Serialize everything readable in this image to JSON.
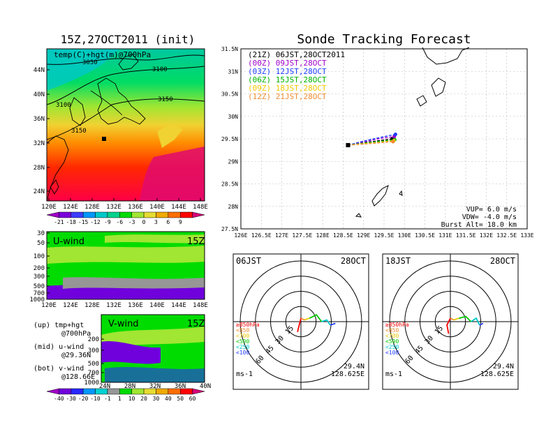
{
  "left_panel": {
    "title": "15Z,27OCT2011 (init)",
    "map_label": "temp(C)+hgt(m)@700hPa",
    "contour_labels": [
      "3050",
      "3100",
      "3100",
      "3150",
      "3150"
    ],
    "lat_ticks": [
      "44N",
      "40N",
      "36N",
      "32N",
      "28N",
      "24N"
    ],
    "lon_ticks": [
      "120E",
      "124E",
      "128E",
      "132E",
      "136E",
      "140E",
      "144E",
      "148E"
    ],
    "temp_colorbar": {
      "labels": [
        "-21",
        "-18",
        "-15",
        "-12",
        "-9",
        "-6",
        "-3",
        "0",
        "3",
        "6",
        "9"
      ],
      "colors": [
        "#a000c8",
        "#7a00dc",
        "#3c3cff",
        "#0096ff",
        "#00c8c8",
        "#00d28c",
        "#00dc00",
        "#a0e632",
        "#e6dc32",
        "#f0aa00",
        "#ff6e00",
        "#ff0000",
        "#d6007a"
      ]
    },
    "u_wind": {
      "label": "U-wind",
      "time": "15Z",
      "p_ticks": [
        "30",
        "50",
        "100",
        "200",
        "300",
        "500",
        "700",
        "1000"
      ],
      "lon_ticks": [
        "120E",
        "124E",
        "128E",
        "132E",
        "136E",
        "140E",
        "144E",
        "148E"
      ]
    },
    "v_wind": {
      "label": "V-wind",
      "time": "15Z",
      "p_ticks": [
        "200",
        "300",
        "500",
        "700",
        "1000"
      ],
      "lat_ticks": [
        "24N",
        "28N",
        "32N",
        "36N",
        "40N"
      ]
    },
    "legend_notes": [
      {
        "head": "(up) tmp+hgt",
        "sub": "@700hPa"
      },
      {
        "head": "(mid) u-wind",
        "sub": "@29.36N"
      },
      {
        "head": "(bot) v-wind",
        "sub": "@128.66E"
      }
    ],
    "wind_colorbar": {
      "labels": [
        "-40",
        "-30",
        "-20",
        "-10",
        "-1",
        "1",
        "10",
        "20",
        "30",
        "40",
        "50",
        "60"
      ],
      "colors": [
        "#a000c8",
        "#7000dc",
        "#2828ff",
        "#0096ff",
        "#00d2d2",
        "#969696",
        "#00dc00",
        "#a0e632",
        "#e6dc32",
        "#f0aa00",
        "#ff6e00",
        "#ff0000",
        "#d6007a"
      ]
    }
  },
  "main_map": {
    "title": "Sonde Tracking Forecast",
    "lat_ticks": [
      "31.5N",
      "31N",
      "30.5N",
      "30N",
      "29.5N",
      "29N",
      "28.5N",
      "28N",
      "27.5N"
    ],
    "lon_ticks": [
      "126E",
      "126.5E",
      "127E",
      "127.5E",
      "128E",
      "128.5E",
      "129E",
      "129.5E",
      "130E",
      "130.5E",
      "131E",
      "131.5E",
      "132E",
      "132.5E",
      "133E"
    ],
    "legend": [
      {
        "text": "(21Z) 06JST,28OCT2011",
        "color": "#000000"
      },
      {
        "text": "(00Z) 09JST,28OCT",
        "color": "#a000c8"
      },
      {
        "text": "(03Z) 12JST,28OCT",
        "color": "#1e3cff"
      },
      {
        "text": "(06Z) 15JST,28OCT",
        "color": "#00b400"
      },
      {
        "text": "(09Z) 18JST,28OCT",
        "color": "#f0c800"
      },
      {
        "text": "(12Z) 21JST,28OCT",
        "color": "#f08c32"
      }
    ],
    "params": [
      "VUP=  6.0 m/s",
      "VDW= -4.0 m/s",
      "Burst Alt= 18.0 km"
    ]
  },
  "hodographs": [
    {
      "time_label": "06JST",
      "date_label": "28OCT",
      "lat": "29.4N",
      "lon": "128.625E",
      "unit": "ms-1",
      "ring_labels": [
        "15",
        "30",
        "45",
        "60"
      ]
    },
    {
      "time_label": "18JST",
      "date_label": "28OCT",
      "lat": "29.4N",
      "lon": "128.625E",
      "unit": "ms-1",
      "ring_labels": [
        "15",
        "30",
        "45",
        "60"
      ]
    }
  ],
  "hodo_legend": [
    {
      "text": "≥850hPa",
      "color": "#ff0000"
    },
    {
      "text": "<850",
      "color": "#f08c32"
    },
    {
      "text": "<700",
      "color": "#e6c800"
    },
    {
      "text": "<500",
      "color": "#00c800"
    },
    {
      "text": "<250",
      "color": "#00c8c8"
    },
    {
      "text": "<100",
      "color": "#1e3cff"
    }
  ],
  "chart_data": [
    {
      "type": "line",
      "title": "Sonde Tracking Forecast",
      "xlim": [
        126,
        133
      ],
      "ylim": [
        27.5,
        31.5
      ],
      "series": [
        {
          "name": "(21Z) 06JST,28OCT2011",
          "x": [
            128.62,
            128.9,
            129.3,
            129.7
          ],
          "y": [
            29.36,
            29.4,
            29.45,
            29.5
          ]
        },
        {
          "name": "(00Z) 09JST,28OCT",
          "x": [
            128.62,
            128.95,
            129.35,
            129.75
          ],
          "y": [
            29.36,
            29.42,
            29.5,
            29.55
          ]
        },
        {
          "name": "(03Z) 12JST,28OCT",
          "x": [
            128.62,
            129.0,
            129.4,
            129.78
          ],
          "y": [
            29.36,
            29.45,
            29.53,
            29.6
          ]
        },
        {
          "name": "(06Z) 15JST,28OCT",
          "x": [
            128.62,
            128.95,
            129.35,
            129.76
          ],
          "y": [
            29.36,
            29.4,
            29.44,
            29.48
          ]
        },
        {
          "name": "(09Z) 18JST,28OCT",
          "x": [
            128.62,
            128.95,
            129.35,
            129.74
          ],
          "y": [
            29.36,
            29.39,
            29.42,
            29.46
          ]
        },
        {
          "name": "(12Z) 21JST,28OCT",
          "x": [
            128.62,
            128.95,
            129.35,
            129.72
          ],
          "y": [
            29.36,
            29.38,
            29.41,
            29.44
          ]
        }
      ]
    },
    {
      "type": "line",
      "series": [
        {
          "name": "≥850hPa",
          "u": [
            -2,
            -1,
            0
          ],
          "v": [
            -6,
            -2,
            2
          ]
        },
        {
          "name": "<850",
          "u": [
            0,
            2
          ],
          "v": [
            2,
            1
          ]
        },
        {
          "name": "<700",
          "u": [
            2,
            5
          ],
          "v": [
            1,
            2
          ]
        },
        {
          "name": "<500",
          "u": [
            5,
            9,
            12
          ],
          "v": [
            2,
            4,
            0
          ]
        },
        {
          "name": "<250",
          "u": [
            12,
            15,
            17
          ],
          "v": [
            0,
            1,
            -2
          ]
        },
        {
          "name": "<100",
          "u": [
            17,
            20
          ],
          "v": [
            -2,
            -1
          ]
        }
      ]
    },
    {
      "type": "line",
      "series": [
        {
          "name": "≥850hPa",
          "u": [
            -1,
            -2,
            0
          ],
          "v": [
            -7,
            -2,
            2
          ]
        },
        {
          "name": "<850",
          "u": [
            0,
            2
          ],
          "v": [
            2,
            1
          ]
        },
        {
          "name": "<700",
          "u": [
            2,
            5
          ],
          "v": [
            1,
            2
          ]
        },
        {
          "name": "<500",
          "u": [
            5,
            9,
            12
          ],
          "v": [
            2,
            3,
            0
          ]
        },
        {
          "name": "<250",
          "u": [
            12,
            15,
            17
          ],
          "v": [
            0,
            2,
            -2
          ]
        },
        {
          "name": "<100",
          "u": [
            17,
            19
          ],
          "v": [
            -2,
            -1
          ]
        }
      ]
    }
  ]
}
